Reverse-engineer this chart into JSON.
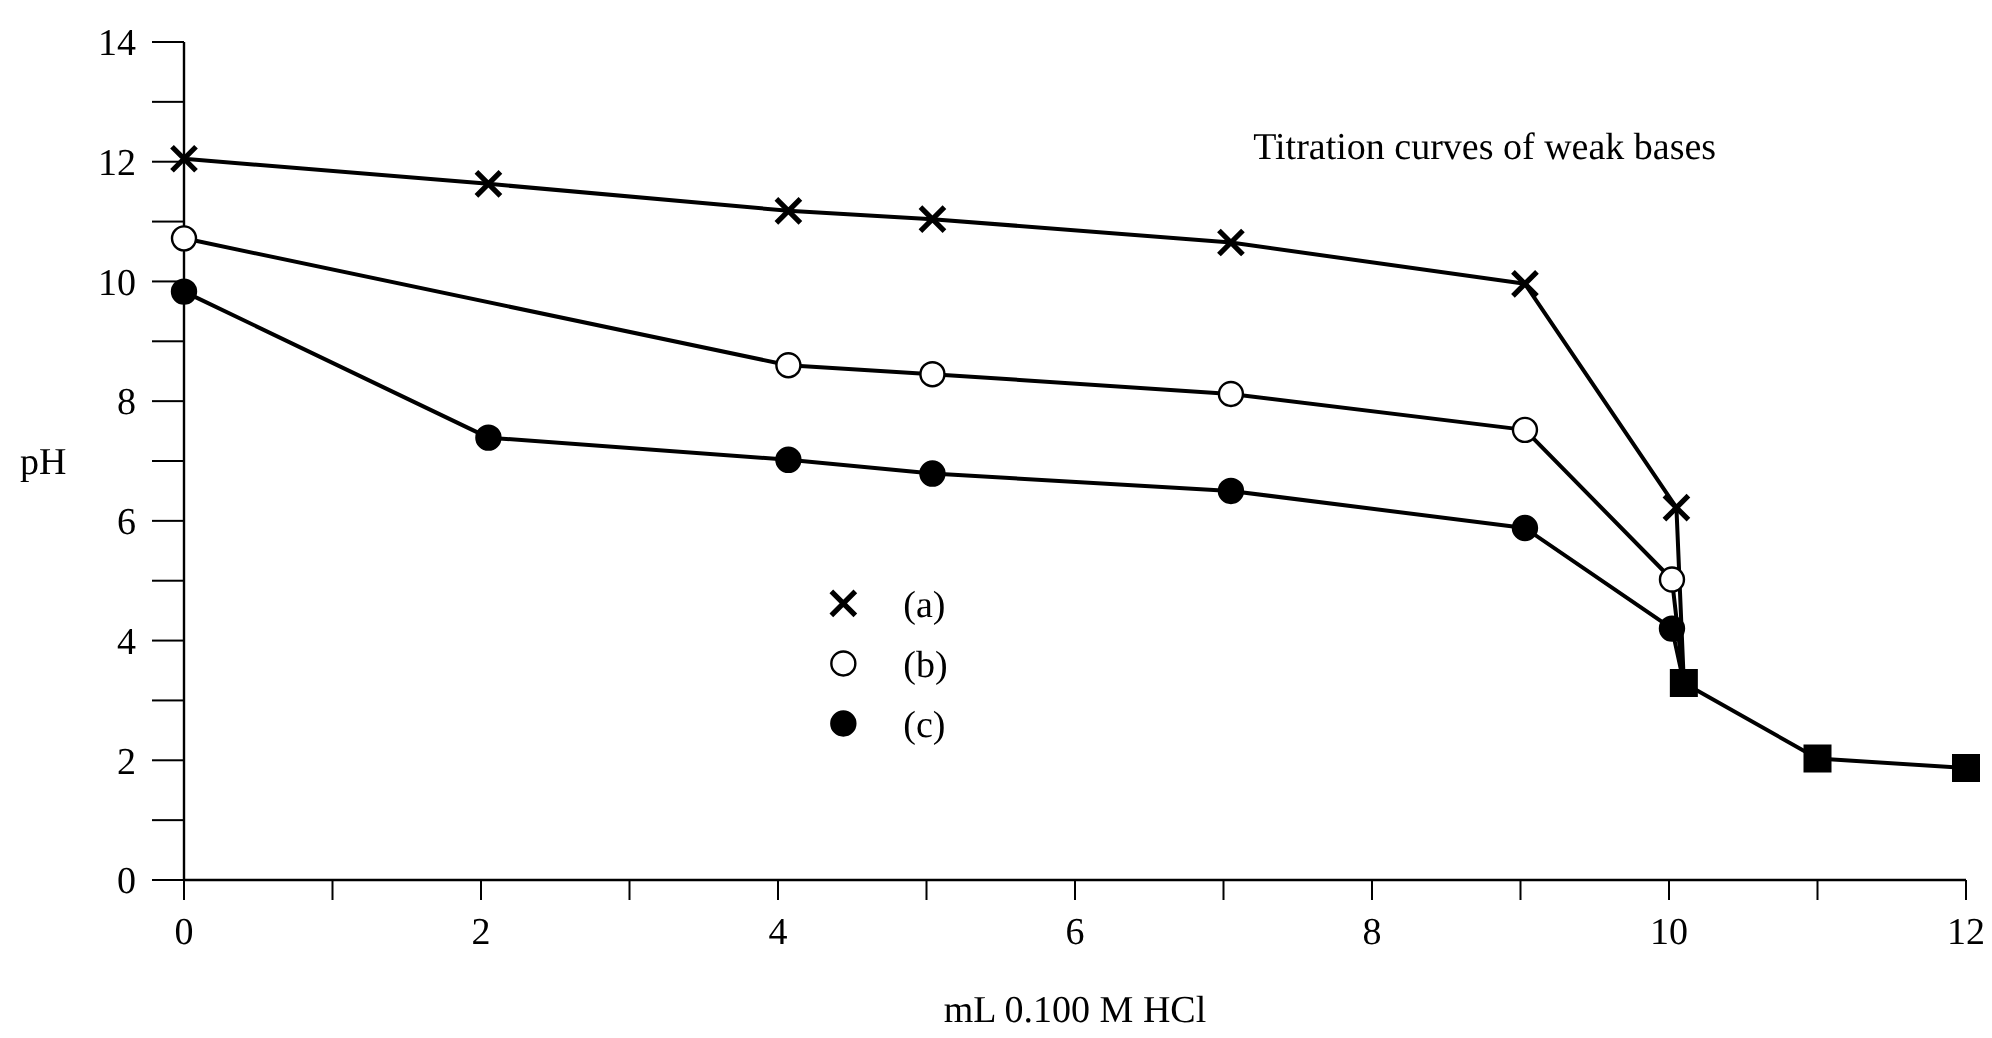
{
  "chart_data": {
    "type": "line",
    "title": "Titration curves of weak bases",
    "xlabel": "mL 0.100 M HCl",
    "ylabel": "pH",
    "xlim": [
      0,
      12
    ],
    "ylim": [
      0,
      14
    ],
    "xticks": [
      0,
      {
        "value": 1,
        "label": null
      },
      2,
      {
        "value": 3,
        "label": null
      },
      4,
      {
        "value": 5,
        "label": null
      },
      6,
      {
        "value": 7,
        "label": null
      },
      8,
      {
        "value": 9,
        "label": null
      },
      10,
      {
        "value": 11,
        "label": null
      },
      12
    ],
    "yticks": [
      0,
      {
        "value": 1,
        "label": null
      },
      2,
      {
        "value": 3,
        "label": null
      },
      4,
      {
        "value": 5,
        "label": null
      },
      6,
      {
        "value": 7,
        "label": null
      },
      8,
      {
        "value": 9,
        "label": null
      },
      10,
      {
        "value": 11,
        "label": null
      },
      12,
      {
        "value": 13,
        "label": null
      },
      14
    ],
    "grid": false,
    "legend": "bottom left",
    "line_style": "solid",
    "series": [
      {
        "name": "(a)",
        "color": "#000000",
        "marker": "cross",
        "x": [
          0,
          2.05,
          4.07,
          5.04,
          7.05,
          9.03,
          10.05,
          10.1
        ],
        "values": [
          12.05,
          11.63,
          11.18,
          11.04,
          10.65,
          9.96,
          6.22,
          3.29
        ]
      },
      {
        "name": "(b)",
        "color": "#000000",
        "marker": "circle",
        "x": [
          0,
          4.07,
          5.04,
          7.05,
          9.03,
          10.02,
          10.1
        ],
        "values": [
          10.72,
          8.6,
          8.45,
          8.12,
          7.52,
          5.02,
          3.29
        ]
      },
      {
        "name": "(c)",
        "color": "#000000",
        "marker": "circle",
        "x": [
          0,
          2.05,
          4.07,
          5.04,
          7.05,
          9.03,
          10.02,
          10.1
        ],
        "values": [
          9.83,
          7.39,
          7.02,
          6.79,
          6.5,
          5.88,
          4.2,
          3.29
        ]
      },
      {
        "color": "#000000",
        "marker": "square",
        "x": [
          10.1,
          11,
          12
        ],
        "values": [
          3.29,
          2.03,
          1.87
        ]
      }
    ]
  }
}
